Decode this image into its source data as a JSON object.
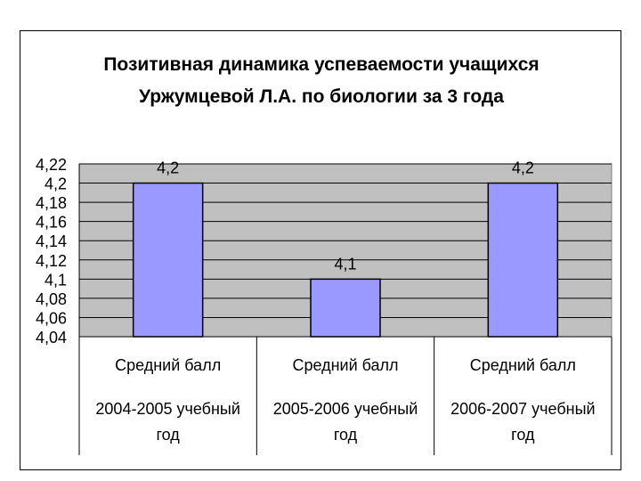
{
  "chart_data": {
    "type": "bar",
    "title_lines": [
      "Позитивная динамика успеваемости учащихся",
      "Уржумцевой Л.А.  по биологии за 3 года"
    ],
    "categories": [
      [
        "Средний балл",
        "2004-2005 учебный",
        "год"
      ],
      [
        "Средний балл",
        "2005-2006 учебный",
        "год"
      ],
      [
        "Средний балл",
        "2006-2007 учебный",
        "год"
      ]
    ],
    "values": [
      4.2,
      4.1,
      4.2
    ],
    "data_labels": [
      "4,2",
      "4,1",
      "4,2"
    ],
    "ylim": [
      4.04,
      4.22
    ],
    "yticks": [
      4.04,
      4.06,
      4.08,
      4.1,
      4.12,
      4.14,
      4.16,
      4.18,
      4.2,
      4.22
    ],
    "ytick_labels": [
      "4,04",
      "4,06",
      "4,08",
      "4,1",
      "4,12",
      "4,14",
      "4,16",
      "4,18",
      "4,2",
      "4,22"
    ],
    "grid": true,
    "legend": "none",
    "colors": {
      "bar": "#9999ff",
      "plot_bg": "#c0c0c0",
      "grid": "#000000"
    }
  }
}
